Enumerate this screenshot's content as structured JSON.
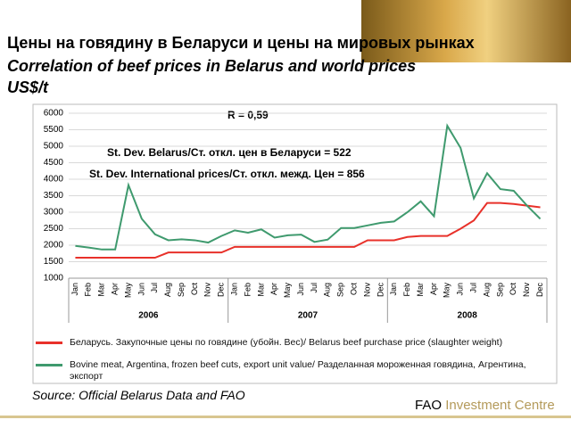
{
  "header": {
    "title": "Цены на говядину в Беларуси и цены на мировых рынках",
    "subtitle": "Correlation of beef prices in Belarus and world prices",
    "unit": "US$/t"
  },
  "chart_data": {
    "type": "line",
    "categories": [
      "Jan",
      "Feb",
      "Mar",
      "Apr",
      "May",
      "Jun",
      "Jul",
      "Aug",
      "Sep",
      "Oct",
      "Nov",
      "Dec",
      "Jan",
      "Feb",
      "Mar",
      "Apr",
      "May",
      "Jun",
      "Jul",
      "Aug",
      "Sep",
      "Oct",
      "Nov",
      "Dec",
      "Jan",
      "Feb",
      "Mar",
      "Apr",
      "May",
      "Jun",
      "Jul",
      "Aug",
      "Sep",
      "Oct",
      "Nov",
      "Dec"
    ],
    "years": [
      "2006",
      "2007",
      "2008"
    ],
    "series": [
      {
        "name": "Беларусь. Закупочные цены по говядине (убойн. Вес)/ Belarus beef purchase price (slaughter weight)",
        "color": "#e8312a",
        "values": [
          1620,
          1620,
          1620,
          1620,
          1620,
          1620,
          1620,
          1780,
          1780,
          1780,
          1780,
          1780,
          1950,
          1950,
          1950,
          1950,
          1950,
          1950,
          1950,
          1950,
          1950,
          1950,
          2150,
          2150,
          2150,
          2250,
          2280,
          2280,
          2280,
          2500,
          2750,
          3280,
          3280,
          3250,
          3200,
          3150
        ]
      },
      {
        "name": "Bovine meat, Argentina, frozen beef cuts, export unit value/ Разделанная мороженная говядина, Агрентина, экспорт",
        "color": "#3f9a6e",
        "values": [
          1980,
          1930,
          1870,
          1870,
          3820,
          2800,
          2330,
          2150,
          2180,
          2150,
          2080,
          2280,
          2450,
          2380,
          2480,
          2230,
          2300,
          2320,
          2100,
          2170,
          2520,
          2520,
          2600,
          2680,
          2720,
          3000,
          3330,
          2880,
          5620,
          4950,
          3420,
          4180,
          3700,
          3650,
          3200,
          2800
        ]
      }
    ],
    "ylim": [
      1000,
      6000
    ],
    "yticks": [
      1000,
      1500,
      2000,
      2500,
      3000,
      3500,
      4000,
      4500,
      5000,
      5500,
      6000
    ],
    "grid": true,
    "annotations": [
      "R = 0,59",
      "St. Dev. Belarus/Ст. откл. цен в Беларуси = 522",
      "St. Dev. International prices/Ст. откл. межд. Цен = 856"
    ]
  },
  "footer": {
    "source": "Source: Official Belarus Data and FAO",
    "org": "FAO",
    "org_unit": "Investment Centre"
  }
}
